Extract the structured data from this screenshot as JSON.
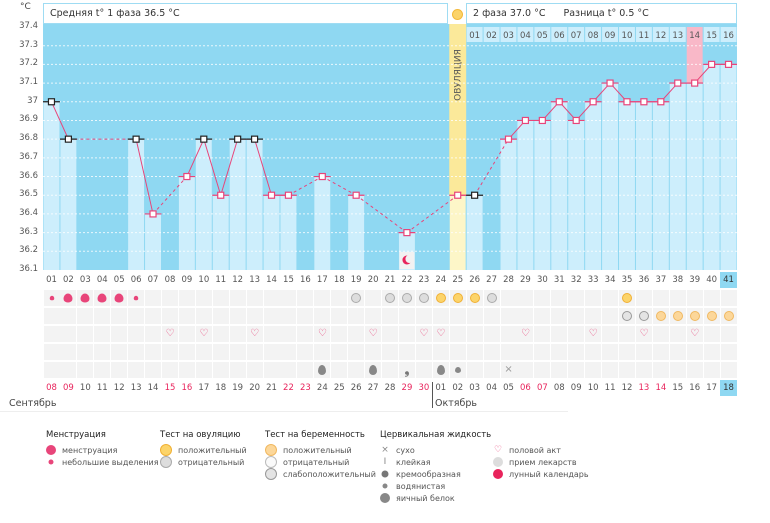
{
  "units": "°C",
  "header": {
    "phase1": "Средняя t° 1 фаза 36.5 °C",
    "phase2": "2 фаза 37.0 °C",
    "diff": "Разница t° 0.5 °C"
  },
  "ovulation_label": "ОВУЛЯЦИЯ",
  "ovulation_day": 25,
  "highlight_phase2_day": 14,
  "colors": {
    "bg": "#8fd8f2",
    "bar": "#cdeefc",
    "ovulation": "#fbe99a",
    "line": "#e8457a",
    "pink": "#f9b8c8"
  },
  "y_ticks": [
    "37.4",
    "37.3",
    "37.2",
    "37.1",
    "37",
    "36.9",
    "36.8",
    "36.7",
    "36.6",
    "36.5",
    "36.4",
    "36.3",
    "36.2",
    "36.1"
  ],
  "chart_data": {
    "type": "line",
    "ylim": [
      36.1,
      37.4
    ],
    "x": [
      1,
      2,
      3,
      4,
      5,
      6,
      7,
      8,
      9,
      10,
      11,
      12,
      13,
      14,
      15,
      16,
      17,
      18,
      19,
      20,
      21,
      22,
      23,
      24,
      25,
      26,
      27,
      28,
      29,
      30,
      31,
      32,
      33,
      34,
      35,
      36,
      37,
      38,
      39,
      40,
      41
    ],
    "values": [
      37.0,
      36.8,
      null,
      null,
      null,
      36.8,
      36.4,
      null,
      36.6,
      36.8,
      36.5,
      36.8,
      36.8,
      36.5,
      36.5,
      null,
      36.6,
      null,
      36.5,
      null,
      null,
      36.3,
      null,
      null,
      36.5,
      36.5,
      null,
      36.8,
      36.9,
      36.9,
      37.0,
      36.9,
      37.0,
      37.1,
      37.0,
      37.0,
      37.0,
      37.1,
      37.1,
      37.2,
      37.2
    ],
    "dark_markers": [
      1,
      2,
      6,
      10,
      12,
      13,
      26
    ]
  },
  "cycle_days": [
    "01",
    "02",
    "03",
    "04",
    "05",
    "06",
    "07",
    "08",
    "09",
    "10",
    "11",
    "12",
    "13",
    "14",
    "15",
    "16",
    "17",
    "18",
    "19",
    "20",
    "21",
    "22",
    "23",
    "24",
    "25",
    "26",
    "27",
    "28",
    "29",
    "30",
    "31",
    "32",
    "33",
    "34",
    "35",
    "36",
    "37",
    "38",
    "39",
    "40",
    "41"
  ],
  "phase2_days": [
    "01",
    "02",
    "03",
    "04",
    "05",
    "06",
    "07",
    "08",
    "09",
    "10",
    "11",
    "12",
    "13",
    "14",
    "15",
    "16"
  ],
  "dates": [
    "08",
    "09",
    "10",
    "11",
    "12",
    "13",
    "14",
    "15",
    "16",
    "17",
    "18",
    "19",
    "20",
    "21",
    "22",
    "23",
    "24",
    "25",
    "26",
    "27",
    "28",
    "29",
    "30",
    "01",
    "02",
    "03",
    "04",
    "05",
    "06",
    "07",
    "08",
    "09",
    "10",
    "11",
    "12",
    "13",
    "14",
    "15",
    "16",
    "17",
    "18"
  ],
  "red_dates": [
    1,
    2,
    8,
    9,
    15,
    16,
    22,
    23,
    29,
    30,
    36,
    37
  ],
  "months": [
    "Сентябрь",
    "Октябрь"
  ],
  "marks": {
    "menstruation": {
      "1": "small",
      "2": "heavy",
      "3": "heavy",
      "4": "heavy",
      "5": "heavy",
      "6": "small"
    },
    "ovulation_test": {
      "19": "negative",
      "21": "negative",
      "22": "negative",
      "23": "negative",
      "24": "positive",
      "25": "positive",
      "26": "positive",
      "27": "negative",
      "35": "positive"
    },
    "pregnancy_test": {
      "35": "weak",
      "36": "weak",
      "37": "positive",
      "38": "positive",
      "39": "positive",
      "40": "positive",
      "41": "positive"
    },
    "intercourse": [
      8,
      10,
      13,
      17,
      20,
      23,
      24,
      29,
      33,
      36,
      39
    ],
    "fluid": {
      "17": "egg-white",
      "20": "egg-white",
      "22": "creamy",
      "24": "egg-white",
      "25": "watery",
      "28": "dry"
    },
    "moon_day": 22
  },
  "legend": [
    {
      "title": "Менструация",
      "items": [
        "менструация",
        "небольшие выделения"
      ]
    },
    {
      "title": "Тест на овуляцию",
      "items": [
        "положительный",
        "отрицательный"
      ]
    },
    {
      "title": "Тест на беременность",
      "items": [
        "положительный",
        "отрицательный",
        "слабоположительный"
      ]
    },
    {
      "title": "Цервикальная жидкость",
      "items": [
        "сухо",
        "клейкая",
        "кремообразная",
        "водянистая",
        "яичный белок"
      ]
    },
    {
      "title": "",
      "items": [
        "половой акт",
        "прием лекарств",
        "лунный календарь"
      ]
    }
  ]
}
